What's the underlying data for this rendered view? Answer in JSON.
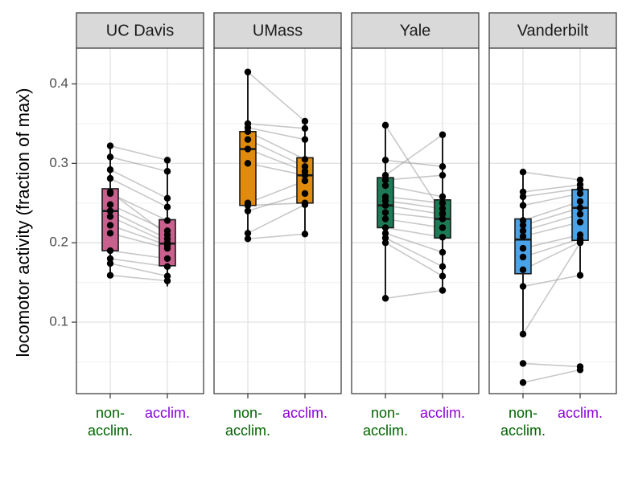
{
  "chart_data": {
    "type": "box",
    "ylabel": "locomotor activity (fraction of max)",
    "xlabel": "",
    "ylim": [
      0.01,
      0.445
    ],
    "yticks": [
      0.1,
      0.2,
      0.3,
      0.4
    ],
    "ytick_labels": [
      "0.1",
      "0.2",
      "0.3",
      "0.4"
    ],
    "grid": true,
    "categories": [
      "non-\nacclim.",
      "acclim."
    ],
    "category_colors": {
      "non-\nacclim.": "#006400",
      "acclim.": "#8B00D8"
    },
    "panels": [
      {
        "name": "UC Davis",
        "fill": "#C9608E",
        "groups": [
          {
            "label": "non-\nacclim.",
            "q1": 0.19,
            "median": 0.24,
            "q3": 0.268,
            "whisker_low": 0.159,
            "whisker_high": 0.322
          },
          {
            "label": "acclim.",
            "q1": 0.171,
            "median": 0.199,
            "q3": 0.229,
            "whisker_low": 0.145,
            "whisker_high": 0.304
          }
        ],
        "pairs": [
          [
            0.322,
            0.304
          ],
          [
            0.308,
            0.29
          ],
          [
            0.292,
            0.256
          ],
          [
            0.281,
            0.245
          ],
          [
            0.262,
            0.228
          ],
          [
            0.248,
            0.215
          ],
          [
            0.24,
            0.205
          ],
          [
            0.233,
            0.2
          ],
          [
            0.222,
            0.197
          ],
          [
            0.212,
            0.193
          ],
          [
            0.19,
            0.18
          ],
          [
            0.18,
            0.17
          ],
          [
            0.174,
            0.158
          ],
          [
            0.159,
            0.152
          ],
          [
            0.264,
            0.21
          ]
        ]
      },
      {
        "name": "UMass",
        "fill": "#E08B0B",
        "groups": [
          {
            "label": "non-\nacclim.",
            "q1": 0.247,
            "median": 0.318,
            "q3": 0.34,
            "whisker_low": 0.205,
            "whisker_high": 0.415
          },
          {
            "label": "acclim.",
            "q1": 0.25,
            "median": 0.285,
            "q3": 0.307,
            "whisker_low": 0.211,
            "whisker_high": 0.353
          }
        ],
        "pairs": [
          [
            0.415,
            0.353
          ],
          [
            0.35,
            0.344
          ],
          [
            0.345,
            0.33
          ],
          [
            0.34,
            0.305
          ],
          [
            0.33,
            0.296
          ],
          [
            0.318,
            0.29
          ],
          [
            0.3,
            0.285
          ],
          [
            0.25,
            0.278
          ],
          [
            0.247,
            0.25
          ],
          [
            0.24,
            0.262
          ],
          [
            0.212,
            0.248
          ],
          [
            0.205,
            0.211
          ]
        ]
      },
      {
        "name": "Yale",
        "fill": "#1C7A55",
        "groups": [
          {
            "label": "non-\nacclim.",
            "q1": 0.219,
            "median": 0.247,
            "q3": 0.282,
            "whisker_low": 0.13,
            "whisker_high": 0.348
          },
          {
            "label": "acclim.",
            "q1": 0.206,
            "median": 0.23,
            "q3": 0.254,
            "whisker_low": 0.14,
            "whisker_high": 0.336
          }
        ],
        "pairs": [
          [
            0.348,
            0.237
          ],
          [
            0.304,
            0.296
          ],
          [
            0.285,
            0.336
          ],
          [
            0.279,
            0.285
          ],
          [
            0.272,
            0.258
          ],
          [
            0.258,
            0.25
          ],
          [
            0.253,
            0.243
          ],
          [
            0.247,
            0.236
          ],
          [
            0.238,
            0.23
          ],
          [
            0.23,
            0.219
          ],
          [
            0.219,
            0.207
          ],
          [
            0.212,
            0.188
          ],
          [
            0.206,
            0.17
          ],
          [
            0.2,
            0.158
          ],
          [
            0.13,
            0.14
          ]
        ]
      },
      {
        "name": "Vanderbilt",
        "fill": "#4AA3E8",
        "groups": [
          {
            "label": "non-\nacclim.",
            "q1": 0.161,
            "median": 0.204,
            "q3": 0.23,
            "whisker_low": 0.085,
            "whisker_high": 0.289
          },
          {
            "label": "acclim.",
            "q1": 0.203,
            "median": 0.244,
            "q3": 0.267,
            "whisker_low": 0.159,
            "whisker_high": 0.279
          }
        ],
        "pairs": [
          [
            0.289,
            0.279
          ],
          [
            0.264,
            0.273
          ],
          [
            0.258,
            0.268
          ],
          [
            0.247,
            0.262
          ],
          [
            0.228,
            0.252
          ],
          [
            0.222,
            0.244
          ],
          [
            0.215,
            0.236
          ],
          [
            0.208,
            0.226
          ],
          [
            0.193,
            0.21
          ],
          [
            0.182,
            0.205
          ],
          [
            0.166,
            0.201
          ],
          [
            0.145,
            0.159
          ],
          [
            0.085,
            0.2
          ],
          [
            0.048,
            0.044
          ],
          [
            0.024,
            0.04
          ]
        ]
      }
    ]
  }
}
